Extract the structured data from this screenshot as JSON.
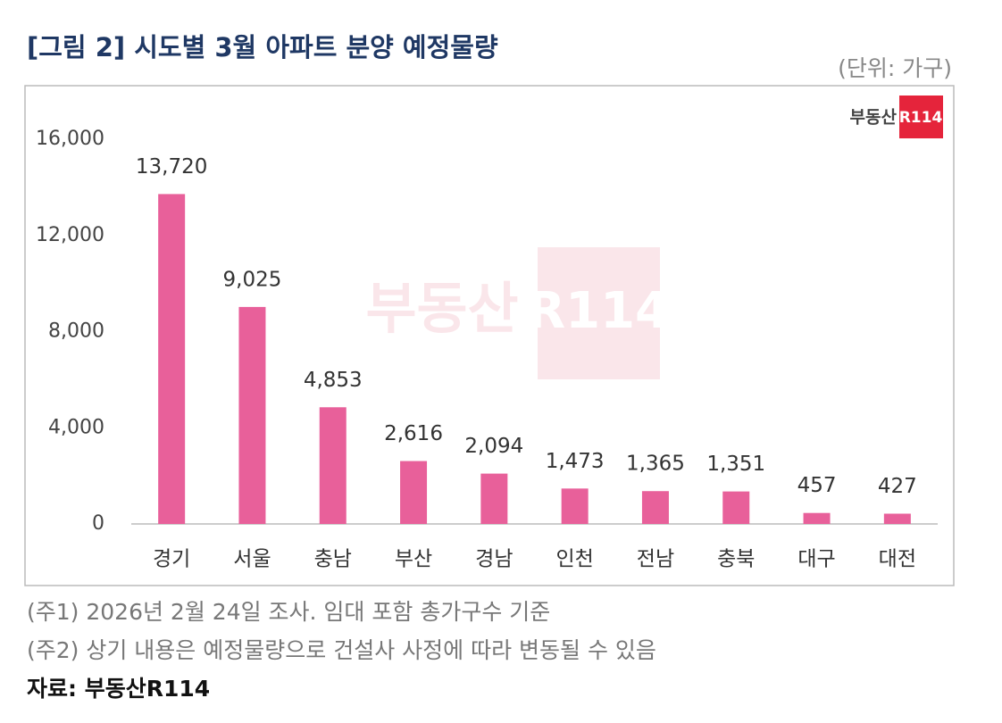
{
  "chart_data": {
    "type": "bar",
    "title": "[그림 2] 시도별 3월 아파트 분양 예정물량",
    "unit_label": "(단위: 가구)",
    "logo": {
      "text": "부동산",
      "badge": "R114"
    },
    "categories": [
      "경기",
      "서울",
      "충남",
      "부산",
      "경남",
      "인천",
      "전남",
      "충북",
      "대구",
      "대전"
    ],
    "values": [
      13720,
      9025,
      4853,
      2616,
      2094,
      1473,
      1365,
      1351,
      457,
      427
    ],
    "value_labels": [
      "13,720",
      "9,025",
      "4,853",
      "2,616",
      "2,094",
      "1,473",
      "1,365",
      "1,351",
      "457",
      "427"
    ],
    "color": "#e8609a",
    "ylim": [
      0,
      16000
    ],
    "yticks": [
      0,
      {
        "value": 4000,
        "label": "4,000"
      },
      {
        "value": 8000,
        "label": "8,000"
      },
      {
        "value": 12000,
        "label": "12,000"
      },
      {
        "value": 16000,
        "label": "16,000"
      }
    ],
    "grid": false,
    "notes": [
      "(주1) 2026년 2월 24일 조사. 임대 포함 총가구수 기준",
      "(주2) 상기 내용은 예정물량으로 건설사 사정에 따라 변동될 수 있음"
    ],
    "source": "자료: 부동산R114"
  }
}
